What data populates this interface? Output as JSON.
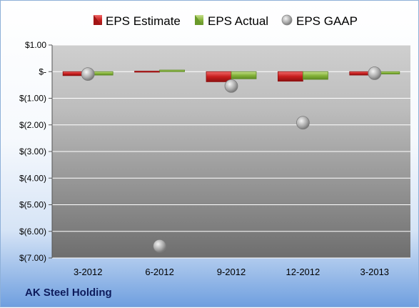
{
  "company": "AK Steel Holding",
  "colors": {
    "estimate": "#d42424",
    "actual": "#86b43b",
    "gaap": "#a8a8a8"
  },
  "chart_data": {
    "type": "bar",
    "categories": [
      "3-2012",
      "6-2012",
      "9-2012",
      "12-2012",
      "3-2013"
    ],
    "series": [
      {
        "name": "EPS Estimate",
        "values": [
          -0.15,
          0.02,
          -0.38,
          -0.36,
          -0.13
        ]
      },
      {
        "name": "EPS Actual",
        "values": [
          -0.13,
          0.06,
          -0.27,
          -0.29,
          -0.09
        ]
      },
      {
        "name": "EPS GAAP",
        "type": "scatter",
        "values": [
          -0.09,
          -6.55,
          -0.54,
          -1.92,
          -0.06
        ]
      }
    ],
    "ylim": [
      -7,
      1
    ],
    "yticks": [
      1,
      0,
      -1,
      -2,
      -3,
      -4,
      -5,
      -6,
      -7
    ],
    "ytick_labels": [
      "$1.00",
      "$-",
      "$(1.00)",
      "$(2.00)",
      "$(3.00)",
      "$(4.00)",
      "$(5.00)",
      "$(6.00)",
      "$(7.00)"
    ],
    "legend_position": "top",
    "grid": true
  }
}
